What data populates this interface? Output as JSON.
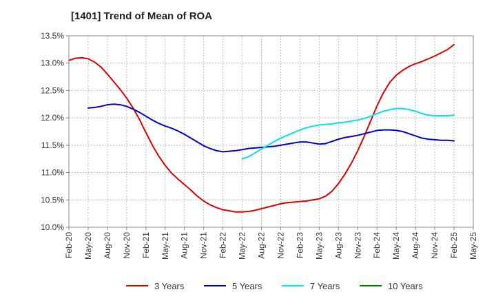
{
  "chart_data": {
    "type": "line",
    "title": "[1401]  Trend of Mean of ROA",
    "xlabel": "",
    "ylabel": "",
    "x_labels": [
      "Feb-20",
      "May-20",
      "Aug-20",
      "Nov-20",
      "Feb-21",
      "May-21",
      "Aug-21",
      "Nov-21",
      "Feb-22",
      "May-22",
      "Aug-22",
      "Nov-22",
      "Feb-23",
      "May-23",
      "Aug-23",
      "Nov-23",
      "Feb-24",
      "May-24",
      "Aug-24",
      "Nov-24",
      "Feb-25",
      "May-25"
    ],
    "y_ticks": [
      "10.0%",
      "10.5%",
      "11.0%",
      "11.5%",
      "12.0%",
      "12.5%",
      "13.0%",
      "13.5%"
    ],
    "ylim": [
      10.0,
      13.5
    ],
    "grid": true,
    "legend_position": "bottom",
    "series": [
      {
        "name": "3 Years",
        "color": "#dd0000",
        "x": [
          "Feb-20",
          "Mar-20",
          "Apr-20",
          "May-20",
          "Jun-20",
          "Jul-20",
          "Aug-20",
          "Sep-20",
          "Oct-20",
          "Nov-20",
          "Dec-20",
          "Jan-21",
          "Feb-21",
          "Mar-21",
          "Apr-21",
          "May-21",
          "Jun-21",
          "Jul-21",
          "Aug-21",
          "Sep-21",
          "Oct-21",
          "Nov-21",
          "Dec-21",
          "Jan-22",
          "Feb-22",
          "Mar-22",
          "Apr-22",
          "May-22",
          "Jun-22",
          "Jul-22",
          "Aug-22",
          "Sep-22",
          "Oct-22",
          "Nov-22",
          "Dec-22",
          "Jan-23",
          "Feb-23",
          "Mar-23",
          "Apr-23",
          "May-23",
          "Jun-23",
          "Jul-23",
          "Aug-23",
          "Sep-23",
          "Oct-23",
          "Nov-23",
          "Dec-23",
          "Jan-24",
          "Feb-24",
          "Mar-24",
          "Apr-24",
          "May-24",
          "Jun-24",
          "Jul-24",
          "Aug-24",
          "Sep-24",
          "Oct-24",
          "Nov-24",
          "Dec-24",
          "Jan-25",
          "Feb-25"
        ],
        "values": [
          13.05,
          13.09,
          13.1,
          13.08,
          13.02,
          12.93,
          12.8,
          12.66,
          12.52,
          12.36,
          12.18,
          11.97,
          11.73,
          11.5,
          11.3,
          11.13,
          10.99,
          10.88,
          10.78,
          10.68,
          10.57,
          10.48,
          10.41,
          10.36,
          10.32,
          10.3,
          10.28,
          10.28,
          10.29,
          10.31,
          10.34,
          10.37,
          10.4,
          10.43,
          10.45,
          10.46,
          10.47,
          10.48,
          10.5,
          10.52,
          10.57,
          10.66,
          10.8,
          10.97,
          11.17,
          11.4,
          11.66,
          11.94,
          12.22,
          12.46,
          12.65,
          12.78,
          12.87,
          12.94,
          12.99,
          13.03,
          13.08,
          13.13,
          13.19,
          13.25,
          13.34
        ]
      },
      {
        "name": "5 Years",
        "color": "#0000cc",
        "x": [
          "Feb-20",
          "Mar-20",
          "Apr-20",
          "May-20",
          "Jun-20",
          "Jul-20",
          "Aug-20",
          "Sep-20",
          "Oct-20",
          "Nov-20",
          "Dec-20",
          "Jan-21",
          "Feb-21",
          "Mar-21",
          "Apr-21",
          "May-21",
          "Jun-21",
          "Jul-21",
          "Aug-21",
          "Sep-21",
          "Oct-21",
          "Nov-21",
          "Dec-21",
          "Jan-22",
          "Feb-22",
          "Mar-22",
          "Apr-22",
          "May-22",
          "Jun-22",
          "Jul-22",
          "Aug-22",
          "Sep-22",
          "Oct-22",
          "Nov-22",
          "Dec-22",
          "Jan-23",
          "Feb-23",
          "Mar-23",
          "Apr-23",
          "May-23",
          "Jun-23",
          "Jul-23",
          "Aug-23",
          "Sep-23",
          "Oct-23",
          "Nov-23",
          "Dec-23",
          "Jan-24",
          "Feb-24",
          "Mar-24",
          "Apr-24",
          "May-24",
          "Jun-24",
          "Jul-24",
          "Aug-24",
          "Sep-24",
          "Oct-24",
          "Nov-24",
          "Dec-24",
          "Jan-25",
          "Feb-25"
        ],
        "values": [
          null,
          null,
          null,
          12.18,
          12.19,
          12.21,
          12.24,
          12.25,
          12.24,
          12.21,
          12.16,
          12.1,
          12.03,
          11.96,
          11.9,
          11.85,
          11.81,
          11.76,
          11.7,
          11.63,
          11.56,
          11.49,
          11.44,
          11.4,
          11.38,
          11.39,
          11.4,
          11.42,
          11.44,
          11.45,
          11.46,
          11.47,
          11.48,
          11.5,
          11.52,
          11.54,
          11.56,
          11.56,
          11.54,
          11.52,
          11.53,
          11.57,
          11.61,
          11.64,
          11.66,
          11.68,
          11.71,
          11.74,
          11.77,
          11.78,
          11.78,
          11.77,
          11.75,
          11.71,
          11.67,
          11.63,
          11.61,
          11.6,
          11.59,
          11.59,
          11.58
        ]
      },
      {
        "name": "7 Years",
        "color": "#00e5e5",
        "x": [
          "May-22",
          "Jun-22",
          "Jul-22",
          "Aug-22",
          "Sep-22",
          "Oct-22",
          "Nov-22",
          "Dec-22",
          "Jan-23",
          "Feb-23",
          "Mar-23",
          "Apr-23",
          "May-23",
          "Jun-23",
          "Jul-23",
          "Aug-23",
          "Sep-23",
          "Oct-23",
          "Nov-23",
          "Dec-23",
          "Jan-24",
          "Feb-24",
          "Mar-24",
          "Apr-24",
          "May-24",
          "Jun-24",
          "Jul-24",
          "Aug-24",
          "Sep-24",
          "Oct-24",
          "Nov-24",
          "Dec-24",
          "Jan-25",
          "Feb-25"
        ],
        "values": [
          11.25,
          11.29,
          11.36,
          11.43,
          11.5,
          11.57,
          11.63,
          11.68,
          11.73,
          11.78,
          11.82,
          11.85,
          11.87,
          11.88,
          11.89,
          11.91,
          11.92,
          11.94,
          11.96,
          11.99,
          12.03,
          12.08,
          12.12,
          12.15,
          12.17,
          12.17,
          12.15,
          12.12,
          12.08,
          12.05,
          12.04,
          12.04,
          12.04,
          12.05
        ]
      },
      {
        "name": "10 Years",
        "color": "#008000",
        "x": [],
        "values": []
      }
    ]
  }
}
